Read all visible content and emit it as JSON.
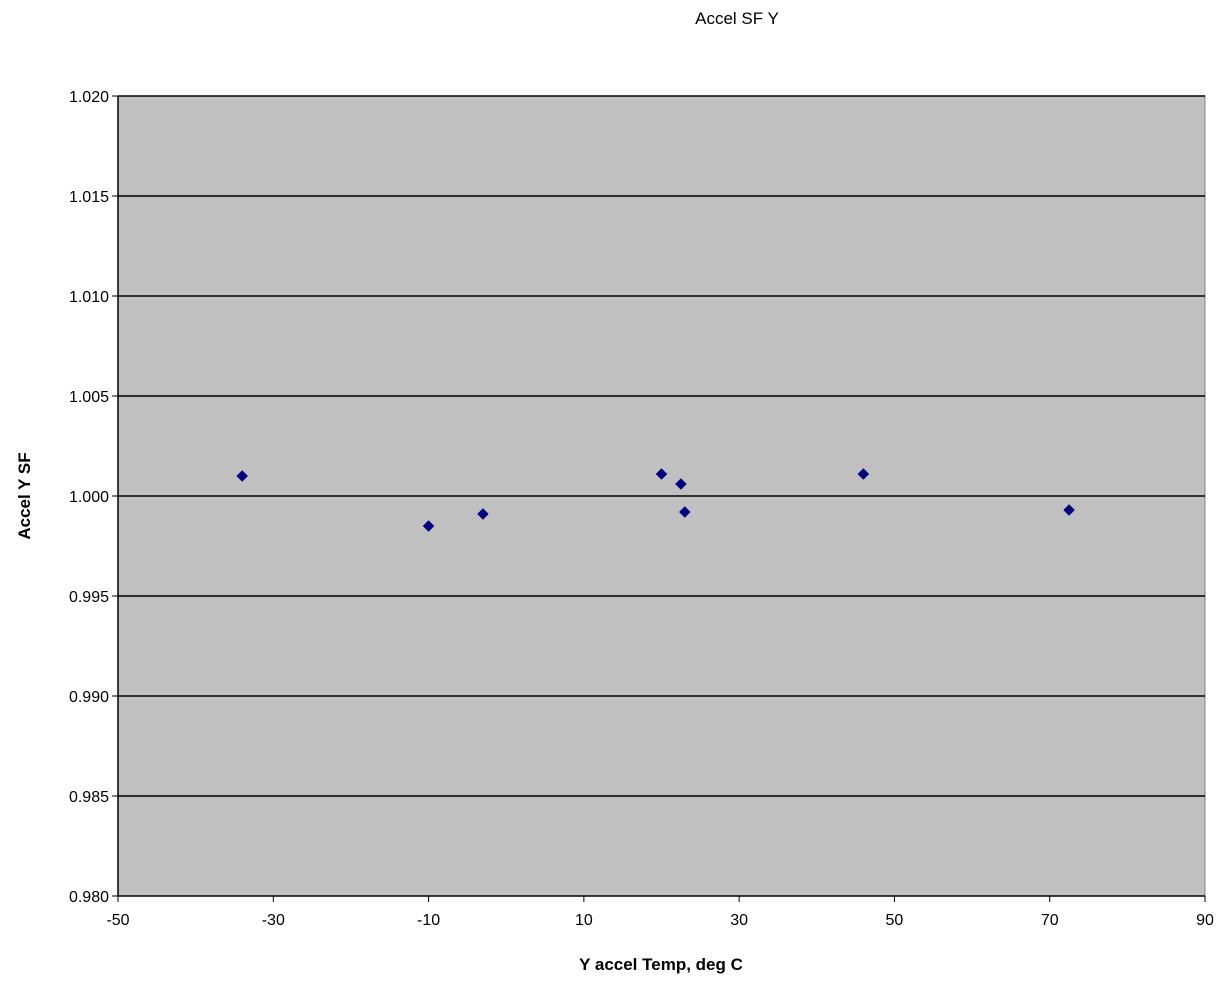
{
  "chart_data": {
    "type": "scatter",
    "title": "Accel SF Y",
    "xlabel": "Y accel Temp, deg C",
    "ylabel": "Accel Y SF",
    "xlim": [
      -50,
      90
    ],
    "ylim": [
      0.98,
      1.02
    ],
    "x_ticks": [
      "-50",
      "-30",
      "-10",
      "10",
      "30",
      "50",
      "70",
      "90"
    ],
    "y_ticks": [
      "0.980",
      "0.985",
      "0.990",
      "0.995",
      "1.000",
      "1.005",
      "1.010",
      "1.015",
      "1.020"
    ],
    "grid": "horizontal major gridlines",
    "legend": "none",
    "plot_background": "#C0C0C0",
    "marker": "diamond",
    "marker_color": "#000080",
    "series": [
      {
        "x": [
          -34,
          -10,
          -3,
          20,
          22.5,
          23,
          46,
          72.5
        ],
        "y": [
          1.001,
          0.9985,
          0.9991,
          1.0011,
          1.0006,
          0.9992,
          1.0011,
          0.9993
        ]
      }
    ]
  }
}
